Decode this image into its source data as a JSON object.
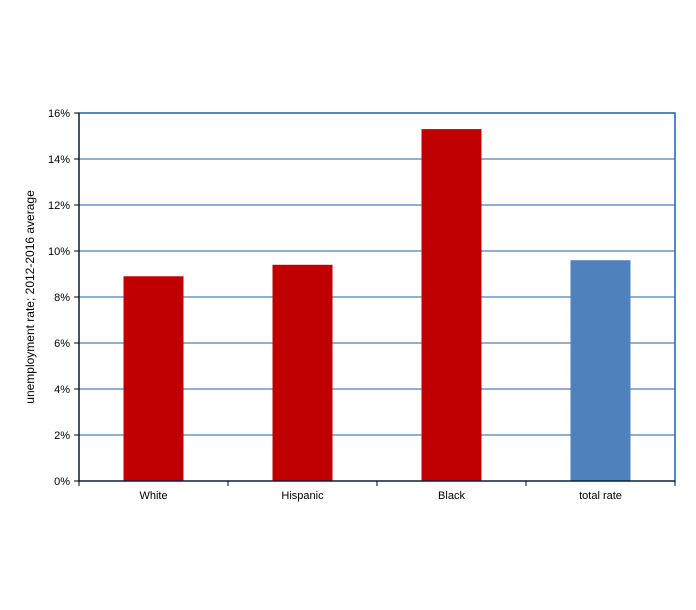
{
  "chart_data": {
    "type": "bar",
    "title": "",
    "xlabel": "",
    "ylabel": "unemployment rate; 2012-2016 average",
    "categories": [
      "White",
      "Hispanic",
      "Black",
      "total rate"
    ],
    "values": [
      8.9,
      9.4,
      15.3,
      9.6
    ],
    "bar_colors": [
      "#c00000",
      "#c00000",
      "#c00000",
      "#4f81bd"
    ],
    "ylim": [
      0,
      16
    ],
    "yticks": [
      0,
      2,
      4,
      6,
      8,
      10,
      12,
      14,
      16
    ],
    "ytick_labels": [
      "0%",
      "2%",
      "4%",
      "6%",
      "8%",
      "10%",
      "12%",
      "14%",
      "16%"
    ],
    "grid": true,
    "grid_color": "#1f5fa8",
    "frame_color": "#1f5fa8",
    "legend": "none"
  }
}
